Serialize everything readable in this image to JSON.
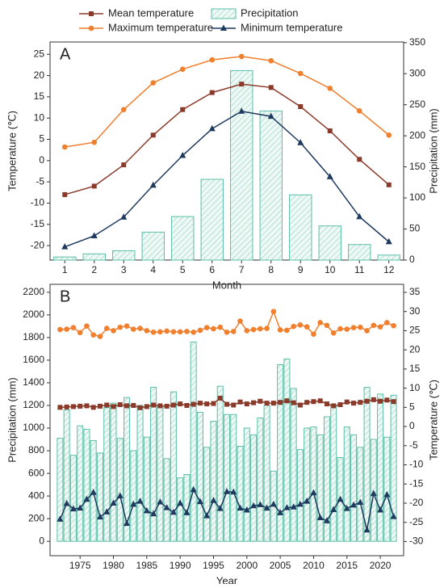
{
  "chart_data": [
    {
      "type": "combo",
      "panel": "A",
      "x": [
        1,
        2,
        3,
        4,
        5,
        6,
        7,
        8,
        9,
        10,
        11,
        12
      ],
      "xlim": [
        0.5,
        12.5
      ],
      "xticks": [
        1,
        2,
        3,
        4,
        5,
        6,
        7,
        8,
        9,
        10,
        11,
        12
      ],
      "xlabel": "Month",
      "ylabel": "Temperature (℃)",
      "y2label": "Precipitation (mm)",
      "ylim": [
        -23.4,
        27.9
      ],
      "yticks": [
        -20,
        -15,
        -10,
        -5,
        0,
        5,
        10,
        15,
        20,
        25
      ],
      "y2lim": [
        0,
        351
      ],
      "y2ticks": [
        0,
        50,
        100,
        150,
        200,
        250,
        300,
        350
      ],
      "series": [
        {
          "name": "Mean temperature",
          "kind": "line",
          "marker": "square",
          "color": "#8b3a2a",
          "axis": "y",
          "values": [
            -8,
            -6,
            -1,
            6,
            12,
            16,
            18,
            17.2,
            12.7,
            7,
            0.3,
            -5.7
          ]
        },
        {
          "name": "Precipitation",
          "kind": "bar",
          "color": "#5bbfa8",
          "axis": "y2",
          "values": [
            5,
            10,
            15,
            45,
            70,
            130,
            305,
            240,
            105,
            55,
            25,
            8
          ]
        },
        {
          "name": "Maximum temperature",
          "kind": "line",
          "marker": "circle",
          "color": "#f07f2e",
          "axis": "y",
          "values": [
            3.2,
            4.3,
            12,
            18.3,
            21.5,
            23.7,
            24.5,
            23.5,
            20.5,
            17,
            11.7,
            6
          ]
        },
        {
          "name": "Minimum temperature",
          "kind": "line",
          "marker": "triangle",
          "color": "#1f3a5f",
          "axis": "y",
          "values": [
            -20.3,
            -17.7,
            -13.3,
            -5.8,
            1.2,
            7.5,
            11.6,
            10.4,
            4.2,
            -3.8,
            -13.2,
            -19.1
          ]
        }
      ]
    },
    {
      "type": "combo",
      "panel": "B",
      "x": [
        1972,
        1973,
        1974,
        1975,
        1976,
        1977,
        1978,
        1979,
        1980,
        1981,
        1982,
        1983,
        1984,
        1985,
        1986,
        1987,
        1988,
        1989,
        1990,
        1991,
        1992,
        1993,
        1994,
        1995,
        1996,
        1997,
        1998,
        1999,
        2000,
        2001,
        2002,
        2003,
        2004,
        2005,
        2006,
        2007,
        2008,
        2009,
        2010,
        2011,
        2012,
        2013,
        2014,
        2015,
        2016,
        2017,
        2018,
        2019,
        2020,
        2021,
        2022
      ],
      "xlim": [
        1970.5,
        2023.5
      ],
      "xticks": [
        1975,
        1980,
        1985,
        1990,
        1995,
        2000,
        2005,
        2010,
        2015,
        2020
      ],
      "xlabel": "Year",
      "ylabel": "Precipitation (mm)",
      "y2label": "Temperature (℃)",
      "ylim": [
        -127,
        2270
      ],
      "yticks": [
        0,
        200,
        400,
        600,
        800,
        1000,
        1200,
        1400,
        1600,
        1800,
        2000,
        2200
      ],
      "y2lim": [
        -33.7,
        37.1
      ],
      "y2ticks": [
        -30,
        -25,
        -20,
        -15,
        -10,
        -5,
        0,
        5,
        10,
        15,
        20,
        25,
        30,
        35
      ],
      "series": [
        {
          "kind": "bar",
          "color": "#5bbfa8",
          "axis": "y",
          "values": [
            910,
            1160,
            760,
            1020,
            990,
            890,
            780,
            1180,
            1220,
            910,
            1270,
            800,
            1200,
            920,
            1360,
            1200,
            730,
            1320,
            560,
            590,
            1760,
            1140,
            830,
            1060,
            1370,
            1120,
            1120,
            840,
            1000,
            940,
            1090,
            1200,
            620,
            1560,
            1610,
            1350,
            810,
            1000,
            1010,
            940,
            1100,
            1200,
            740,
            1010,
            940,
            830,
            1360,
            900,
            1300,
            920,
            1290
          ]
        },
        {
          "kind": "line",
          "marker": "square",
          "color": "#8b3a2a",
          "axis": "y2",
          "values": [
            5.0,
            5.1,
            5.2,
            5.3,
            5.4,
            5.0,
            5.3,
            5.6,
            5.2,
            5.7,
            5.4,
            5.5,
            4.9,
            5.2,
            5.6,
            5.4,
            5.3,
            5.6,
            5.9,
            5.5,
            5.8,
            6.1,
            5.9,
            6.0,
            7.4,
            5.8,
            5.6,
            6.4,
            5.9,
            6.2,
            6.6,
            6.1,
            6.1,
            6.3,
            6.7,
            6.2,
            5.6,
            6.3,
            6.5,
            6.7,
            5.9,
            5.4,
            5.7,
            6.4,
            6.1,
            6.3,
            6.6,
            7.0,
            6.6,
            6.9,
            6.5
          ]
        },
        {
          "kind": "line",
          "marker": "circle",
          "color": "#f07f2e",
          "axis": "y2",
          "values": [
            25.3,
            25.4,
            25.8,
            24.5,
            26.2,
            23.9,
            23.5,
            25.6,
            25.0,
            25.9,
            26.2,
            25.4,
            25.6,
            25.0,
            24.6,
            24.7,
            24.9,
            24.7,
            24.7,
            24.8,
            24.6,
            25.1,
            25.8,
            25.5,
            25.9,
            24.6,
            24.8,
            27.5,
            25.0,
            25.3,
            25.5,
            25.6,
            30.0,
            25.2,
            25.1,
            26.1,
            26.5,
            26.0,
            24.1,
            27.1,
            26.4,
            24.4,
            25.5,
            25.4,
            25.8,
            25.9,
            25.0,
            26.4,
            26.0,
            27.1,
            26.3
          ]
        },
        {
          "kind": "line",
          "marker": "triangle",
          "color": "#1f3a5f",
          "axis": "y2",
          "values": [
            -24.2,
            -20.1,
            -21.5,
            -21.3,
            -19.0,
            -17.2,
            -23.6,
            -22.3,
            -20.0,
            -18.1,
            -25.3,
            -20.3,
            -19.5,
            -22.0,
            -22.8,
            -19.7,
            -21.2,
            -22.4,
            -20.0,
            -22.5,
            -16.5,
            -19.6,
            -23.3,
            -19.3,
            -21.4,
            -17.0,
            -17.1,
            -21.3,
            -21.8,
            -20.7,
            -20.4,
            -21.3,
            -20.3,
            -22.5,
            -21.2,
            -21.0,
            -20.3,
            -19.5,
            -17.3,
            -23.8,
            -24.6,
            -21.7,
            -19.0,
            -21.4,
            -20.5,
            -19.8,
            -27.0,
            -17.5,
            -21.8,
            -17.8,
            -23.5
          ]
        }
      ]
    }
  ]
}
